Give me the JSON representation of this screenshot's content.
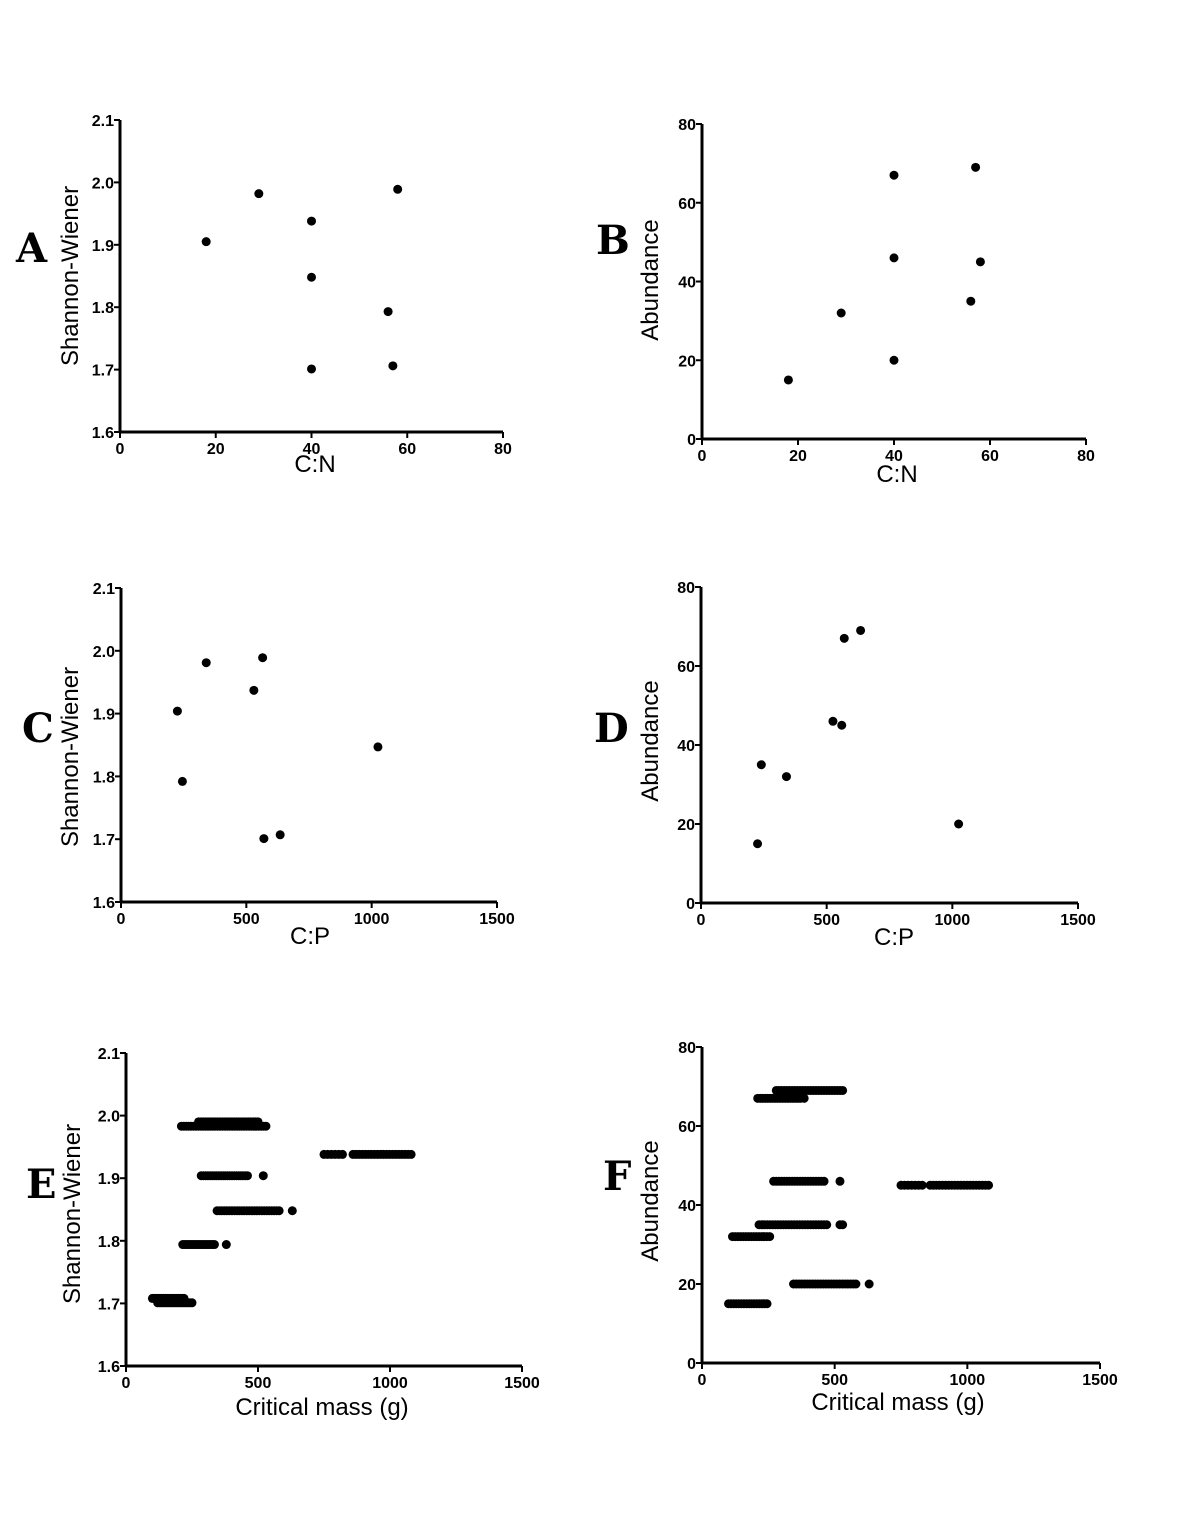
{
  "chart_data": [
    {
      "id": "A",
      "type": "scatter",
      "panel_label": "A",
      "xlabel": "C:N",
      "ylabel": "Shannon-Wiener",
      "xlim": [
        0,
        80
      ],
      "ylim": [
        1.6,
        2.1
      ],
      "xticks": [
        "0",
        "20",
        "40",
        "60",
        "80"
      ],
      "yticks": [
        "1.6",
        "1.7",
        "1.8",
        "1.9",
        "2.0",
        "2.1"
      ],
      "points": [
        [
          18,
          1.905
        ],
        [
          29,
          1.982
        ],
        [
          40,
          1.938
        ],
        [
          40,
          1.848
        ],
        [
          40,
          1.701
        ],
        [
          56,
          1.793
        ],
        [
          57,
          1.706
        ],
        [
          58,
          1.989
        ]
      ]
    },
    {
      "id": "B",
      "type": "scatter",
      "panel_label": "B",
      "xlabel": "C:N",
      "ylabel": "Abundance",
      "xlim": [
        0,
        80
      ],
      "ylim": [
        0,
        80
      ],
      "xticks": [
        "0",
        "20",
        "40",
        "60",
        "80"
      ],
      "yticks": [
        "0",
        "20",
        "40",
        "60",
        "80"
      ],
      "points": [
        [
          18,
          15
        ],
        [
          29,
          32
        ],
        [
          40,
          67
        ],
        [
          40,
          46
        ],
        [
          40,
          20
        ],
        [
          56,
          35
        ],
        [
          57,
          69
        ],
        [
          58,
          45
        ]
      ]
    },
    {
      "id": "C",
      "type": "scatter",
      "panel_label": "C",
      "xlabel": "C:P",
      "ylabel": "Shannon-Wiener",
      "xlim": [
        0,
        1500
      ],
      "ylim": [
        1.6,
        2.1
      ],
      "xticks": [
        "0",
        "500",
        "1000",
        "1500"
      ],
      "yticks": [
        "1.6",
        "1.7",
        "1.8",
        "1.9",
        "2.0",
        "2.1"
      ],
      "points": [
        [
          225,
          1.904
        ],
        [
          245,
          1.792
        ],
        [
          340,
          1.981
        ],
        [
          530,
          1.937
        ],
        [
          565,
          1.989
        ],
        [
          570,
          1.701
        ],
        [
          635,
          1.707
        ],
        [
          1025,
          1.847
        ]
      ]
    },
    {
      "id": "D",
      "type": "scatter",
      "panel_label": "D",
      "xlabel": "C:P",
      "ylabel": "Abundance",
      "xlim": [
        0,
        1500
      ],
      "ylim": [
        0,
        80
      ],
      "xticks": [
        "0",
        "500",
        "1000",
        "1500"
      ],
      "yticks": [
        "0",
        "20",
        "40",
        "60",
        "80"
      ],
      "points": [
        [
          225,
          15
        ],
        [
          240,
          35
        ],
        [
          340,
          32
        ],
        [
          525,
          46
        ],
        [
          560,
          45
        ],
        [
          570,
          67
        ],
        [
          635,
          69
        ],
        [
          1025,
          20
        ]
      ]
    },
    {
      "id": "E",
      "type": "scatter",
      "panel_label": "E",
      "xlabel": "Critical mass (g)",
      "ylabel": "Shannon-Wiener",
      "xlim": [
        0,
        1500
      ],
      "ylim": [
        1.6,
        2.1
      ],
      "xticks": [
        "0",
        "500",
        "1000",
        "1500"
      ],
      "yticks": [
        "1.6",
        "1.7",
        "1.8",
        "1.9",
        "2.0",
        "2.1"
      ],
      "groups": [
        {
          "y": 1.708,
          "x_from": 100,
          "x_to": 220,
          "n": 18
        },
        {
          "y": 1.701,
          "x_from": 120,
          "x_to": 250,
          "n": 18
        },
        {
          "y": 1.794,
          "x_from": 215,
          "x_to": 335,
          "n": 16
        },
        {
          "y": 1.794,
          "x_from": 380,
          "x_to": 380,
          "n": 1
        },
        {
          "y": 1.904,
          "x_from": 285,
          "x_to": 460,
          "n": 22
        },
        {
          "y": 1.904,
          "x_from": 520,
          "x_to": 520,
          "n": 1
        },
        {
          "y": 1.848,
          "x_from": 345,
          "x_to": 580,
          "n": 26
        },
        {
          "y": 1.848,
          "x_from": 630,
          "x_to": 630,
          "n": 1
        },
        {
          "y": 1.983,
          "x_from": 210,
          "x_to": 530,
          "n": 36
        },
        {
          "y": 1.99,
          "x_from": 275,
          "x_to": 500,
          "n": 26
        },
        {
          "y": 1.938,
          "x_from": 750,
          "x_to": 820,
          "n": 6
        },
        {
          "y": 1.938,
          "x_from": 860,
          "x_to": 1080,
          "n": 20
        }
      ]
    },
    {
      "id": "F",
      "type": "scatter",
      "panel_label": "F",
      "xlabel": "Critical mass (g)",
      "ylabel": "Abundance",
      "xlim": [
        0,
        1500
      ],
      "ylim": [
        0,
        80
      ],
      "xticks": [
        "0",
        "500",
        "1000",
        "1500"
      ],
      "yticks": [
        "0",
        "20",
        "40",
        "60",
        "80"
      ],
      "groups": [
        {
          "y": 15,
          "x_from": 100,
          "x_to": 245,
          "n": 16
        },
        {
          "y": 32,
          "x_from": 115,
          "x_to": 255,
          "n": 15
        },
        {
          "y": 35,
          "x_from": 215,
          "x_to": 470,
          "n": 26
        },
        {
          "y": 35,
          "x_from": 520,
          "x_to": 530,
          "n": 2
        },
        {
          "y": 20,
          "x_from": 345,
          "x_to": 580,
          "n": 24
        },
        {
          "y": 20,
          "x_from": 630,
          "x_to": 630,
          "n": 1
        },
        {
          "y": 46,
          "x_from": 270,
          "x_to": 460,
          "n": 20
        },
        {
          "y": 46,
          "x_from": 520,
          "x_to": 520,
          "n": 1
        },
        {
          "y": 67,
          "x_from": 210,
          "x_to": 370,
          "n": 18
        },
        {
          "y": 67,
          "x_from": 385,
          "x_to": 385,
          "n": 1
        },
        {
          "y": 69,
          "x_from": 280,
          "x_to": 530,
          "n": 26
        },
        {
          "y": 45,
          "x_from": 750,
          "x_to": 830,
          "n": 7
        },
        {
          "y": 45,
          "x_from": 860,
          "x_to": 1080,
          "n": 20
        }
      ]
    }
  ]
}
